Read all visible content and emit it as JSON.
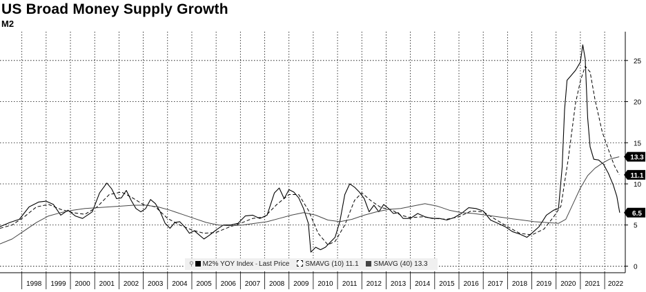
{
  "header": {
    "title": "US Broad Money Supply Growth",
    "subtitle": "M2"
  },
  "legend": {
    "series1": "M2% YOY Index",
    "series1_stat": "Last Price",
    "series2": "SMAVG (10)",
    "series2_value": "11.1",
    "series3": "SMAVG (40)",
    "series3_value": "13.3"
  },
  "chart_data": {
    "type": "line",
    "title": "US Broad Money Supply Growth",
    "subtitle": "M2",
    "x_tick_labels": [
      "1998",
      "1999",
      "2000",
      "2001",
      "2002",
      "2003",
      "2004",
      "2005",
      "2006",
      "2007",
      "2008",
      "2009",
      "2010",
      "2011",
      "2012",
      "2013",
      "2014",
      "2015",
      "2016",
      "2017",
      "2018",
      "2019",
      "2020",
      "2021",
      "2022"
    ],
    "y_ticks": [
      0,
      5,
      10,
      15,
      20,
      25
    ],
    "xlim": [
      1997.1,
      2022.85
    ],
    "ylim": [
      -0.8,
      28.5
    ],
    "y_axis_side": "right",
    "grid": true,
    "legend_position": "bottom-center",
    "value_badges": [
      {
        "label": "13.3",
        "value": 13.3
      },
      {
        "label": "11.1",
        "value": 11.1
      },
      {
        "label": "6.5",
        "value": 6.5
      }
    ],
    "series": [
      {
        "name": "M2% YOY Index",
        "style": "solid",
        "color": "#000000",
        "last": 6.5,
        "points": [
          [
            1997.1,
            4.8
          ],
          [
            1997.5,
            5.3
          ],
          [
            1997.9,
            5.7
          ],
          [
            1998.3,
            7.2
          ],
          [
            1998.7,
            7.8
          ],
          [
            1999.0,
            7.9
          ],
          [
            1999.3,
            7.5
          ],
          [
            1999.6,
            6.2
          ],
          [
            1999.9,
            6.8
          ],
          [
            2000.2,
            6.1
          ],
          [
            2000.5,
            5.8
          ],
          [
            2000.9,
            6.6
          ],
          [
            2001.2,
            8.9
          ],
          [
            2001.5,
            10.1
          ],
          [
            2001.7,
            9.4
          ],
          [
            2001.9,
            8.2
          ],
          [
            2002.1,
            8.3
          ],
          [
            2002.3,
            9.2
          ],
          [
            2002.5,
            8.0
          ],
          [
            2002.7,
            7.0
          ],
          [
            2002.9,
            6.6
          ],
          [
            2003.1,
            7.0
          ],
          [
            2003.3,
            8.1
          ],
          [
            2003.5,
            7.6
          ],
          [
            2003.7,
            6.6
          ],
          [
            2003.9,
            5.2
          ],
          [
            2004.1,
            4.6
          ],
          [
            2004.3,
            5.3
          ],
          [
            2004.5,
            5.4
          ],
          [
            2004.7,
            4.8
          ],
          [
            2004.9,
            4.0
          ],
          [
            2005.1,
            4.3
          ],
          [
            2005.3,
            3.8
          ],
          [
            2005.5,
            3.3
          ],
          [
            2005.7,
            3.7
          ],
          [
            2006.0,
            4.4
          ],
          [
            2006.3,
            5.0
          ],
          [
            2006.6,
            5.0
          ],
          [
            2006.9,
            5.2
          ],
          [
            2007.2,
            6.1
          ],
          [
            2007.5,
            6.2
          ],
          [
            2007.8,
            5.8
          ],
          [
            2008.1,
            6.2
          ],
          [
            2008.4,
            8.9
          ],
          [
            2008.6,
            9.5
          ],
          [
            2008.8,
            8.2
          ],
          [
            2009.0,
            9.3
          ],
          [
            2009.2,
            9.0
          ],
          [
            2009.4,
            8.3
          ],
          [
            2009.6,
            7.0
          ],
          [
            2009.8,
            5.2
          ],
          [
            2009.9,
            1.7
          ],
          [
            2010.1,
            2.3
          ],
          [
            2010.3,
            2.0
          ],
          [
            2010.5,
            2.3
          ],
          [
            2010.7,
            2.9
          ],
          [
            2010.9,
            3.5
          ],
          [
            2011.1,
            5.5
          ],
          [
            2011.3,
            8.7
          ],
          [
            2011.5,
            10.0
          ],
          [
            2011.7,
            9.6
          ],
          [
            2011.9,
            9.0
          ],
          [
            2012.1,
            8.2
          ],
          [
            2012.3,
            6.6
          ],
          [
            2012.5,
            7.4
          ],
          [
            2012.7,
            6.6
          ],
          [
            2012.9,
            7.5
          ],
          [
            2013.1,
            7.0
          ],
          [
            2013.3,
            6.4
          ],
          [
            2013.5,
            6.5
          ],
          [
            2013.7,
            5.8
          ],
          [
            2014.0,
            5.8
          ],
          [
            2014.3,
            6.4
          ],
          [
            2014.6,
            6.0
          ],
          [
            2014.9,
            5.8
          ],
          [
            2015.2,
            5.8
          ],
          [
            2015.5,
            5.6
          ],
          [
            2015.8,
            5.9
          ],
          [
            2016.1,
            6.4
          ],
          [
            2016.4,
            7.1
          ],
          [
            2016.7,
            7.0
          ],
          [
            2017.0,
            6.7
          ],
          [
            2017.3,
            5.6
          ],
          [
            2017.6,
            5.2
          ],
          [
            2017.9,
            4.8
          ],
          [
            2018.2,
            4.2
          ],
          [
            2018.5,
            3.9
          ],
          [
            2018.8,
            3.5
          ],
          [
            2019.0,
            4.0
          ],
          [
            2019.3,
            4.8
          ],
          [
            2019.6,
            6.2
          ],
          [
            2019.9,
            6.8
          ],
          [
            2020.1,
            7.0
          ],
          [
            2020.25,
            12.0
          ],
          [
            2020.35,
            19.0
          ],
          [
            2020.45,
            22.6
          ],
          [
            2020.6,
            23.1
          ],
          [
            2020.8,
            23.8
          ],
          [
            2021.0,
            24.8
          ],
          [
            2021.1,
            26.9
          ],
          [
            2021.2,
            25.2
          ],
          [
            2021.3,
            18.0
          ],
          [
            2021.4,
            14.5
          ],
          [
            2021.55,
            13.0
          ],
          [
            2021.75,
            12.9
          ],
          [
            2021.95,
            12.4
          ],
          [
            2022.15,
            11.3
          ],
          [
            2022.35,
            9.9
          ],
          [
            2022.5,
            8.5
          ],
          [
            2022.62,
            6.5
          ]
        ]
      },
      {
        "name": "SMAVG (10)",
        "style": "dashed",
        "color": "#000000",
        "last": 11.1,
        "points": [
          [
            1997.1,
            4.6
          ],
          [
            1997.6,
            5.0
          ],
          [
            1998.1,
            6.0
          ],
          [
            1998.6,
            7.2
          ],
          [
            1999.1,
            7.5
          ],
          [
            1999.6,
            6.9
          ],
          [
            2000.1,
            6.5
          ],
          [
            2000.6,
            6.3
          ],
          [
            2001.1,
            7.2
          ],
          [
            2001.6,
            8.7
          ],
          [
            2002.1,
            9.0
          ],
          [
            2002.5,
            8.4
          ],
          [
            2003.0,
            7.5
          ],
          [
            2003.5,
            7.2
          ],
          [
            2004.0,
            5.8
          ],
          [
            2004.5,
            5.0
          ],
          [
            2005.0,
            4.4
          ],
          [
            2005.5,
            4.0
          ],
          [
            2006.0,
            4.1
          ],
          [
            2006.5,
            4.7
          ],
          [
            2007.0,
            5.2
          ],
          [
            2007.5,
            5.8
          ],
          [
            2008.0,
            6.0
          ],
          [
            2008.5,
            7.5
          ],
          [
            2009.0,
            8.7
          ],
          [
            2009.4,
            8.7
          ],
          [
            2009.8,
            6.8
          ],
          [
            2010.2,
            4.0
          ],
          [
            2010.6,
            2.6
          ],
          [
            2010.9,
            3.0
          ],
          [
            2011.3,
            5.0
          ],
          [
            2011.7,
            8.0
          ],
          [
            2012.0,
            8.9
          ],
          [
            2012.4,
            7.9
          ],
          [
            2012.8,
            7.1
          ],
          [
            2013.2,
            6.9
          ],
          [
            2013.6,
            6.2
          ],
          [
            2014.0,
            5.9
          ],
          [
            2014.5,
            6.0
          ],
          [
            2015.0,
            5.8
          ],
          [
            2015.5,
            5.7
          ],
          [
            2016.0,
            6.0
          ],
          [
            2016.5,
            6.7
          ],
          [
            2017.0,
            6.6
          ],
          [
            2017.5,
            5.7
          ],
          [
            2018.0,
            4.8
          ],
          [
            2018.5,
            4.0
          ],
          [
            2019.0,
            3.8
          ],
          [
            2019.5,
            4.5
          ],
          [
            2019.9,
            6.0
          ],
          [
            2020.2,
            7.3
          ],
          [
            2020.5,
            13.0
          ],
          [
            2020.8,
            19.8
          ],
          [
            2021.0,
            22.5
          ],
          [
            2021.2,
            24.3
          ],
          [
            2021.4,
            23.6
          ],
          [
            2021.6,
            20.3
          ],
          [
            2021.9,
            16.3
          ],
          [
            2022.2,
            13.8
          ],
          [
            2022.4,
            12.2
          ],
          [
            2022.6,
            11.1
          ]
        ]
      },
      {
        "name": "SMAVG (40)",
        "style": "solid-thin",
        "color": "#444444",
        "last": 13.3,
        "points": [
          [
            1997.1,
            2.7
          ],
          [
            1997.6,
            3.3
          ],
          [
            1998.1,
            4.3
          ],
          [
            1998.6,
            5.3
          ],
          [
            1999.1,
            6.1
          ],
          [
            1999.6,
            6.5
          ],
          [
            2000.1,
            6.8
          ],
          [
            2000.6,
            7.0
          ],
          [
            2001.1,
            7.1
          ],
          [
            2001.6,
            7.2
          ],
          [
            2002.1,
            7.3
          ],
          [
            2002.6,
            7.4
          ],
          [
            2003.1,
            7.4
          ],
          [
            2003.6,
            7.2
          ],
          [
            2004.1,
            6.8
          ],
          [
            2004.6,
            6.3
          ],
          [
            2005.1,
            5.8
          ],
          [
            2005.6,
            5.3
          ],
          [
            2006.1,
            5.0
          ],
          [
            2006.6,
            4.9
          ],
          [
            2007.1,
            5.0
          ],
          [
            2007.6,
            5.2
          ],
          [
            2008.1,
            5.4
          ],
          [
            2008.6,
            5.8
          ],
          [
            2009.1,
            6.2
          ],
          [
            2009.6,
            6.5
          ],
          [
            2010.1,
            6.2
          ],
          [
            2010.6,
            5.6
          ],
          [
            2011.1,
            5.4
          ],
          [
            2011.6,
            5.7
          ],
          [
            2012.1,
            6.2
          ],
          [
            2012.6,
            6.6
          ],
          [
            2013.1,
            6.9
          ],
          [
            2013.6,
            7.0
          ],
          [
            2014.1,
            7.3
          ],
          [
            2014.6,
            7.6
          ],
          [
            2015.1,
            7.3
          ],
          [
            2015.6,
            6.8
          ],
          [
            2016.1,
            6.5
          ],
          [
            2016.6,
            6.4
          ],
          [
            2017.1,
            6.2
          ],
          [
            2017.6,
            6.0
          ],
          [
            2018.1,
            5.8
          ],
          [
            2018.6,
            5.6
          ],
          [
            2019.1,
            5.4
          ],
          [
            2019.6,
            5.3
          ],
          [
            2020.1,
            5.2
          ],
          [
            2020.4,
            5.7
          ],
          [
            2020.7,
            7.6
          ],
          [
            2021.0,
            9.5
          ],
          [
            2021.3,
            11.0
          ],
          [
            2021.6,
            11.9
          ],
          [
            2021.9,
            12.5
          ],
          [
            2022.2,
            13.0
          ],
          [
            2022.6,
            13.3
          ]
        ]
      }
    ]
  }
}
